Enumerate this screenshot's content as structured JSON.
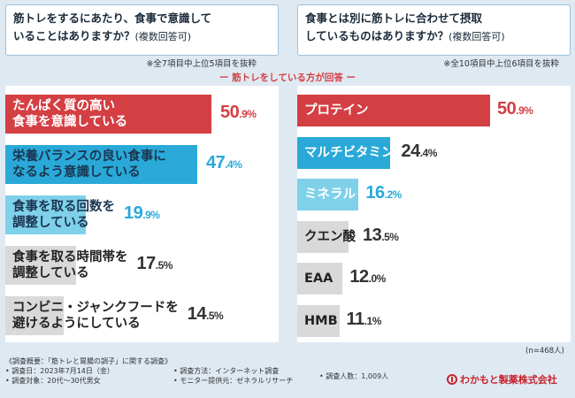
{
  "left_question": {
    "line1": "筋トレをするにあたり、食事で意識して",
    "line2": "いることはありますか？",
    "tag": "(複数回答可)",
    "note": "※全7項目中上位5項目を抜粋"
  },
  "right_question": {
    "line1": "食事とは別に筋トレに合わせて摂取",
    "line2": "しているものはありますか？",
    "tag": "(複数回答可)",
    "note": "※全10項目中上位6項目を抜粋"
  },
  "subtitle": "ー 筋トレをしている方が回答 ー",
  "sample": "(n=468人)",
  "chart_data": [
    {
      "type": "bar",
      "title": "筋トレをするにあたり、食事で意識していることはありますか？(複数回答可)",
      "categories": [
        "たんぱく質の高い食事を意識している",
        "栄養バランスの良い食事になるよう意識している",
        "食事を取る回数を調整している",
        "食事を取る時間帯を調整している",
        "コンビニ・ジャンクフードを避けるようにしている"
      ],
      "labels": [
        [
          "たんぱく質の高い",
          "食事を意識している"
        ],
        [
          "栄養バランスの良い食事に",
          "なるよう意識している"
        ],
        [
          "食事を取る回数を",
          "調整している"
        ],
        [
          "食事を取る時間帯を",
          "調整している"
        ],
        [
          "コンビニ・ジャンクフードを",
          "避けるようにしている"
        ]
      ],
      "values": [
        50.9,
        47.4,
        19.9,
        17.5,
        14.5
      ],
      "display": [
        [
          "50",
          ".9%"
        ],
        [
          "47",
          ".4%"
        ],
        [
          "19",
          ".9%"
        ],
        [
          "17",
          ".5%"
        ],
        [
          "14",
          ".5%"
        ]
      ],
      "colors": [
        "#d43f43",
        "#2aa9d8",
        "#7fd1ea",
        "#d9d9d9",
        "#d9d9d9"
      ],
      "value_colors": [
        "#d43f43",
        "#2aa9d8",
        "#2aa9d8",
        "#333333",
        "#333333"
      ],
      "label_colors": [
        "#ffffff",
        "#1a3550",
        "#1a3550",
        "#222222",
        "#222222"
      ],
      "unit": "%"
    },
    {
      "type": "bar",
      "title": "食事とは別に筋トレに合わせて摂取しているものはありますか？(複数回答可)",
      "categories": [
        "プロテイン",
        "マルチビタミン",
        "ミネラル",
        "クエン酸",
        "EAA",
        "HMB"
      ],
      "labels": [
        [
          "プロテイン"
        ],
        [
          "マルチビタミン"
        ],
        [
          "ミネラル"
        ],
        [
          "クエン酸"
        ],
        [
          "EAA"
        ],
        [
          "HMB"
        ]
      ],
      "values": [
        50.9,
        24.4,
        16.2,
        13.5,
        12.0,
        11.1
      ],
      "display": [
        [
          "50",
          ".9%"
        ],
        [
          "24",
          ".4%"
        ],
        [
          "16",
          ".2%"
        ],
        [
          "13",
          ".5%"
        ],
        [
          "12",
          ".0%"
        ],
        [
          "11",
          ".1%"
        ]
      ],
      "colors": [
        "#d43f43",
        "#2aa9d8",
        "#7fd1ea",
        "#d9d9d9",
        "#d9d9d9",
        "#d9d9d9"
      ],
      "value_colors": [
        "#d43f43",
        "#333333",
        "#2aa9d8",
        "#333333",
        "#333333",
        "#333333"
      ],
      "label_colors": [
        "#ffffff",
        "#ffffff",
        "#ffffff",
        "#222222",
        "#222222",
        "#222222"
      ],
      "unit": "%"
    }
  ],
  "footer": {
    "col1": [
      "《調査概要：「筋トレと胃腸の調子」に関する調査》",
      "• 調査日：2023年7月14日（金）",
      "• 調査対象：20代～30代男女"
    ],
    "col2": [
      "• 調査方法：インターネット調査",
      "• モニター提供元：ゼネラルリサーチ"
    ],
    "col3": [
      "• 調査人数：1,009人"
    ],
    "logo": "わかもと製薬株式会社"
  }
}
